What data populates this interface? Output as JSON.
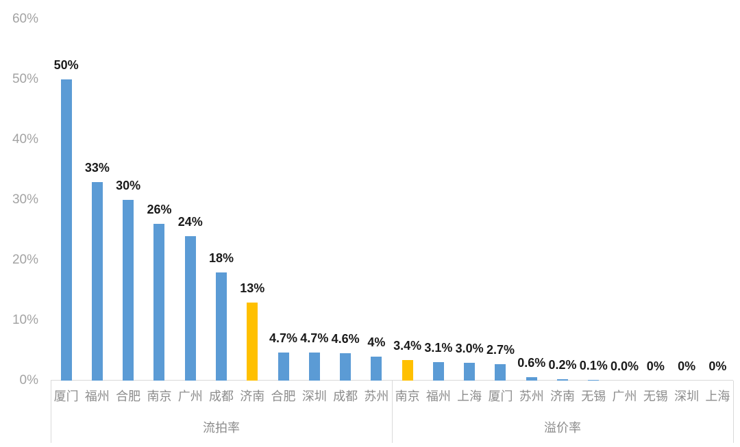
{
  "chart_data": {
    "type": "bar",
    "title": "",
    "xlabel": "",
    "ylabel": "",
    "unit": "%",
    "ylim": [
      0,
      60
    ],
    "grid": false,
    "legend": "none",
    "yticks": [
      {
        "label": "0%",
        "value": 0
      },
      {
        "label": "10%",
        "value": 10
      },
      {
        "label": "20%",
        "value": 20
      },
      {
        "label": "30%",
        "value": 30
      },
      {
        "label": "40%",
        "value": 40
      },
      {
        "label": "50%",
        "value": 50
      },
      {
        "label": "60%",
        "value": 60
      }
    ],
    "groups": [
      {
        "label": "流拍率",
        "bars": [
          {
            "city": "厦门",
            "value": 50,
            "label": "50%",
            "highlight": false
          },
          {
            "city": "福州",
            "value": 33,
            "label": "33%",
            "highlight": false
          },
          {
            "city": "合肥",
            "value": 30,
            "label": "30%",
            "highlight": false
          },
          {
            "city": "南京",
            "value": 26,
            "label": "26%",
            "highlight": false
          },
          {
            "city": "广州",
            "value": 24,
            "label": "24%",
            "highlight": false
          },
          {
            "city": "成都",
            "value": 18,
            "label": "18%",
            "highlight": false
          },
          {
            "city": "济南",
            "value": 13,
            "label": "13%",
            "highlight": true
          },
          {
            "city": "合肥",
            "value": 4.7,
            "label": "4.7%",
            "highlight": false
          },
          {
            "city": "深圳",
            "value": 4.7,
            "label": "4.7%",
            "highlight": false
          },
          {
            "city": "成都",
            "value": 4.6,
            "label": "4.6%",
            "highlight": false
          },
          {
            "city": "苏州",
            "value": 4,
            "label": "4%",
            "highlight": false
          }
        ]
      },
      {
        "label": "溢价率",
        "bars": [
          {
            "city": "南京",
            "value": 3.4,
            "label": "3.4%",
            "highlight": true
          },
          {
            "city": "福州",
            "value": 3.1,
            "label": "3.1%",
            "highlight": false
          },
          {
            "city": "上海",
            "value": 3.0,
            "label": "3.0%",
            "highlight": false
          },
          {
            "city": "厦门",
            "value": 2.7,
            "label": "2.7%",
            "highlight": false
          },
          {
            "city": "苏州",
            "value": 0.6,
            "label": "0.6%",
            "highlight": false
          },
          {
            "city": "济南",
            "value": 0.2,
            "label": "0.2%",
            "highlight": false
          },
          {
            "city": "无锡",
            "value": 0.1,
            "label": "0.1%",
            "highlight": false
          },
          {
            "city": "广州",
            "value": 0.0,
            "label": "0.0%",
            "highlight": false
          },
          {
            "city": "无锡",
            "value": 0,
            "label": "0%",
            "highlight": false
          },
          {
            "city": "深圳",
            "value": 0,
            "label": "0%",
            "highlight": false
          },
          {
            "city": "上海",
            "value": 0,
            "label": "0%",
            "highlight": false
          }
        ]
      }
    ],
    "colors": {
      "bar": "#5B9BD5",
      "highlight": "#FFC000",
      "axis_line": "#D9D9D9",
      "ytick_label": "#A3A3A3",
      "category_label": "#8C8C8C",
      "data_label": "#1A1A1A",
      "background": "#FFFFFF"
    }
  }
}
